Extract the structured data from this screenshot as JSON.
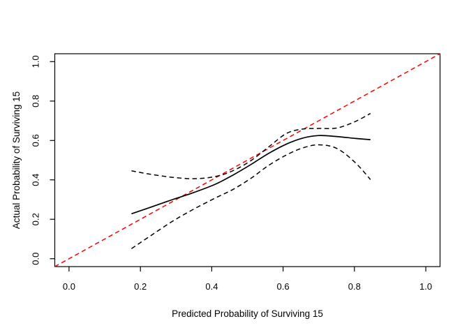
{
  "figure": {
    "background": "#ffffff",
    "frame_color": "#000000"
  },
  "chart_data": {
    "type": "line",
    "title": "",
    "xlabel": "Predicted Probability of Surviving 15",
    "ylabel": "Actual Probability of Surviving 15",
    "xlim": [
      -0.04,
      1.04
    ],
    "ylim": [
      -0.04,
      1.04
    ],
    "grid": false,
    "legend": "none",
    "xticks": {
      "values": [
        0.0,
        0.2,
        0.4,
        0.6,
        0.8,
        1.0
      ],
      "labels": [
        "0.0",
        "0.2",
        "0.4",
        "0.6",
        "0.8",
        "1.0"
      ]
    },
    "yticks": {
      "values": [
        0.0,
        0.2,
        0.4,
        0.6,
        0.8,
        1.0
      ],
      "labels": [
        "0.0",
        "0.2",
        "0.4",
        "0.6",
        "0.8",
        "1.0"
      ]
    },
    "series": [
      {
        "name": "ideal-reference-line",
        "color": "#ff0000",
        "line_style": "dashed",
        "smooth": false,
        "points": [
          [
            -0.04,
            -0.04
          ],
          [
            1.04,
            1.04
          ]
        ]
      },
      {
        "name": "calibration-curve",
        "color": "#000000",
        "line_style": "solid",
        "smooth": true,
        "points": [
          [
            0.175,
            0.228
          ],
          [
            0.23,
            0.262
          ],
          [
            0.29,
            0.3
          ],
          [
            0.35,
            0.336
          ],
          [
            0.41,
            0.378
          ],
          [
            0.46,
            0.425
          ],
          [
            0.51,
            0.478
          ],
          [
            0.56,
            0.535
          ],
          [
            0.61,
            0.582
          ],
          [
            0.655,
            0.612
          ],
          [
            0.7,
            0.625
          ],
          [
            0.75,
            0.62
          ],
          [
            0.8,
            0.611
          ],
          [
            0.845,
            0.604
          ]
        ]
      },
      {
        "name": "upper-confidence-band",
        "color": "#000000",
        "line_style": "dashed",
        "smooth": true,
        "points": [
          [
            0.175,
            0.446
          ],
          [
            0.23,
            0.428
          ],
          [
            0.29,
            0.413
          ],
          [
            0.35,
            0.406
          ],
          [
            0.41,
            0.417
          ],
          [
            0.46,
            0.447
          ],
          [
            0.51,
            0.498
          ],
          [
            0.56,
            0.568
          ],
          [
            0.61,
            0.636
          ],
          [
            0.655,
            0.658
          ],
          [
            0.7,
            0.661
          ],
          [
            0.75,
            0.663
          ],
          [
            0.8,
            0.694
          ],
          [
            0.845,
            0.737
          ]
        ]
      },
      {
        "name": "lower-confidence-band",
        "color": "#000000",
        "line_style": "dashed",
        "smooth": true,
        "points": [
          [
            0.175,
            0.051
          ],
          [
            0.23,
            0.118
          ],
          [
            0.29,
            0.19
          ],
          [
            0.35,
            0.252
          ],
          [
            0.41,
            0.308
          ],
          [
            0.46,
            0.352
          ],
          [
            0.51,
            0.408
          ],
          [
            0.56,
            0.474
          ],
          [
            0.61,
            0.527
          ],
          [
            0.655,
            0.562
          ],
          [
            0.7,
            0.578
          ],
          [
            0.75,
            0.56
          ],
          [
            0.8,
            0.492
          ],
          [
            0.845,
            0.402
          ]
        ]
      }
    ]
  }
}
